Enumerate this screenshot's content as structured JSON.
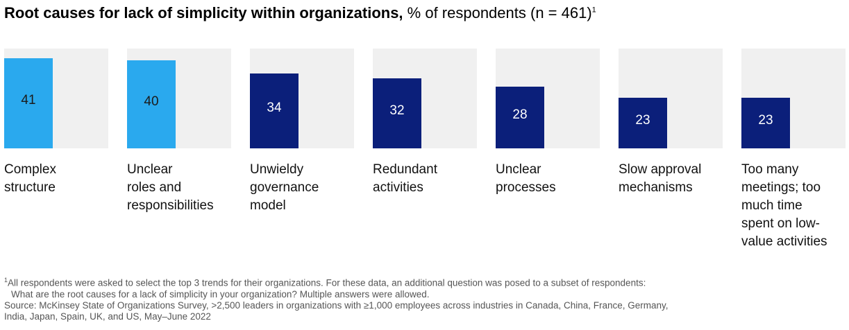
{
  "header": {
    "title_bold": "Root causes for lack of simplicity within organizations,",
    "title_light": " % of respondents (n = 461)",
    "title_footnote_mark": "1"
  },
  "colors": {
    "highlight": "#2aa9ee",
    "primary": "#0b1f7a",
    "track": "#f0f0f0"
  },
  "chart_data": {
    "type": "bar",
    "categories": [
      "Complex structure",
      "Unclear roles and responsibilities",
      "Unwieldy governance model",
      "Redundant activities",
      "Unclear processes",
      "Slow approval mechanisms",
      "Too many meetings; too much time spent on low-value activities"
    ],
    "category_lines": [
      [
        "Complex",
        "structure"
      ],
      [
        "Unclear",
        "roles and",
        "responsibilities"
      ],
      [
        "Unwieldy",
        "governance",
        "model"
      ],
      [
        "Redundant",
        "activities"
      ],
      [
        "Unclear",
        "processes"
      ],
      [
        "Slow approval",
        "mechanisms"
      ],
      [
        "Too many",
        "meetings; too",
        "much time",
        "spent on low-",
        "value activities"
      ]
    ],
    "values": [
      41,
      40,
      34,
      32,
      28,
      23,
      23
    ],
    "highlighted": [
      true,
      true,
      false,
      false,
      false,
      false,
      false
    ],
    "ylim": [
      0,
      100
    ],
    "grid": false,
    "legend": "none"
  },
  "footnote": {
    "mark": "1",
    "line1": "All respondents were asked to select the top 3 trends for their organizations. For these data, an additional question was posed to a subset of respondents:",
    "line2": "What are the root causes for a lack of simplicity in your organization? Multiple answers were allowed.",
    "source1": "Source: McKinsey State of Organizations Survey, >2,500 leaders in organizations with ≥1,000 employees across industries in Canada, China, France, Germany,",
    "source2": "India, Japan, Spain, UK, and US, May–June 2022"
  }
}
